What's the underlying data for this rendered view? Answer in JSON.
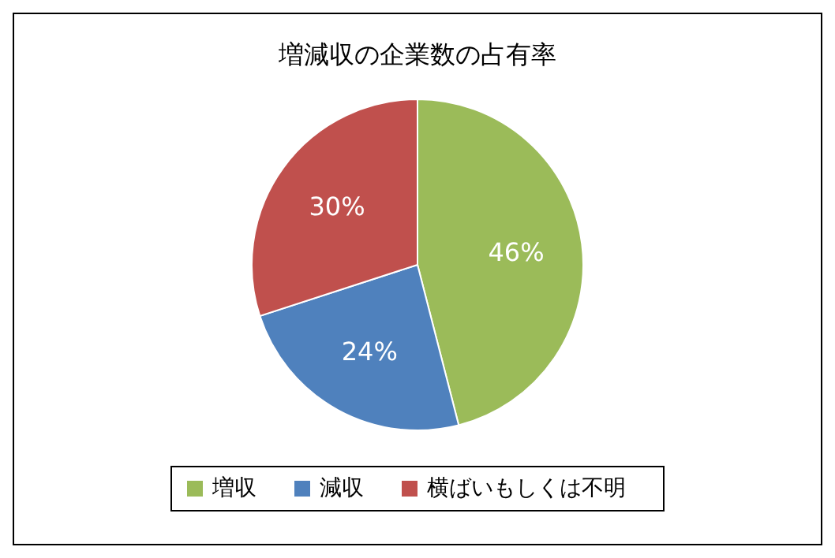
{
  "chart_data": {
    "type": "pie",
    "title": "増減収の企業数の占有率",
    "categories": [
      "増収",
      "減収",
      "横ばいもしくは不明"
    ],
    "values": [
      46,
      24,
      30
    ],
    "colors": [
      "#9bbb59",
      "#4f81bd",
      "#c0504d"
    ],
    "value_labels": [
      "46%",
      "24%",
      "30%"
    ],
    "legend": "bottom"
  }
}
